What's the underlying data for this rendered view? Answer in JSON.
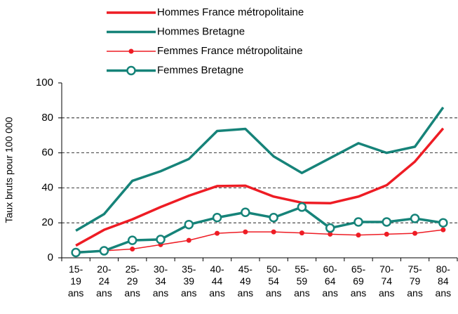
{
  "chart_data": {
    "type": "line",
    "y_label": "Taux bruts pour 100 000",
    "categories": [
      "15- 19 ans",
      "20- 24 ans",
      "25- 29 ans",
      "30- 34 ans",
      "35- 39 ans",
      "40- 44 ans",
      "45- 49 ans",
      "50- 54 ans",
      "55- 59 ans",
      "60- 64 ans",
      "65- 69 ans",
      "70- 74 ans",
      "75- 79 ans",
      "80- 84 ans"
    ],
    "series": [
      {
        "name": "Hommes France métropolitaine",
        "color": "#ee1c24",
        "values": [
          7,
          16,
          22,
          29,
          35.5,
          41,
          41.2,
          35,
          31.5,
          31.2,
          35,
          41.5,
          55,
          74
        ]
      },
      {
        "name": "Hommes Bretagne",
        "color": "#168379",
        "values": [
          15.5,
          25,
          44,
          49.5,
          56.5,
          72.5,
          73.7,
          58,
          48.5,
          57,
          65.5,
          60,
          63.5,
          86
        ]
      },
      {
        "name": "Femmes France métropolitaine",
        "color": "#ee1c24",
        "marker": "dot",
        "values": [
          3.5,
          4,
          5,
          7.5,
          10,
          14,
          14.8,
          14.8,
          14.2,
          13.5,
          13,
          13.5,
          14,
          16
        ]
      },
      {
        "name": "Femmes Bretagne",
        "color": "#168379",
        "marker": "circle",
        "values": [
          3,
          4,
          10,
          10.5,
          19,
          23,
          26,
          23,
          29,
          17,
          20.5,
          20.5,
          22.5,
          20
        ]
      }
    ],
    "ylim": [
      0,
      100
    ],
    "yticks": [
      0,
      20,
      40,
      60,
      80,
      100
    ],
    "grid": true
  }
}
